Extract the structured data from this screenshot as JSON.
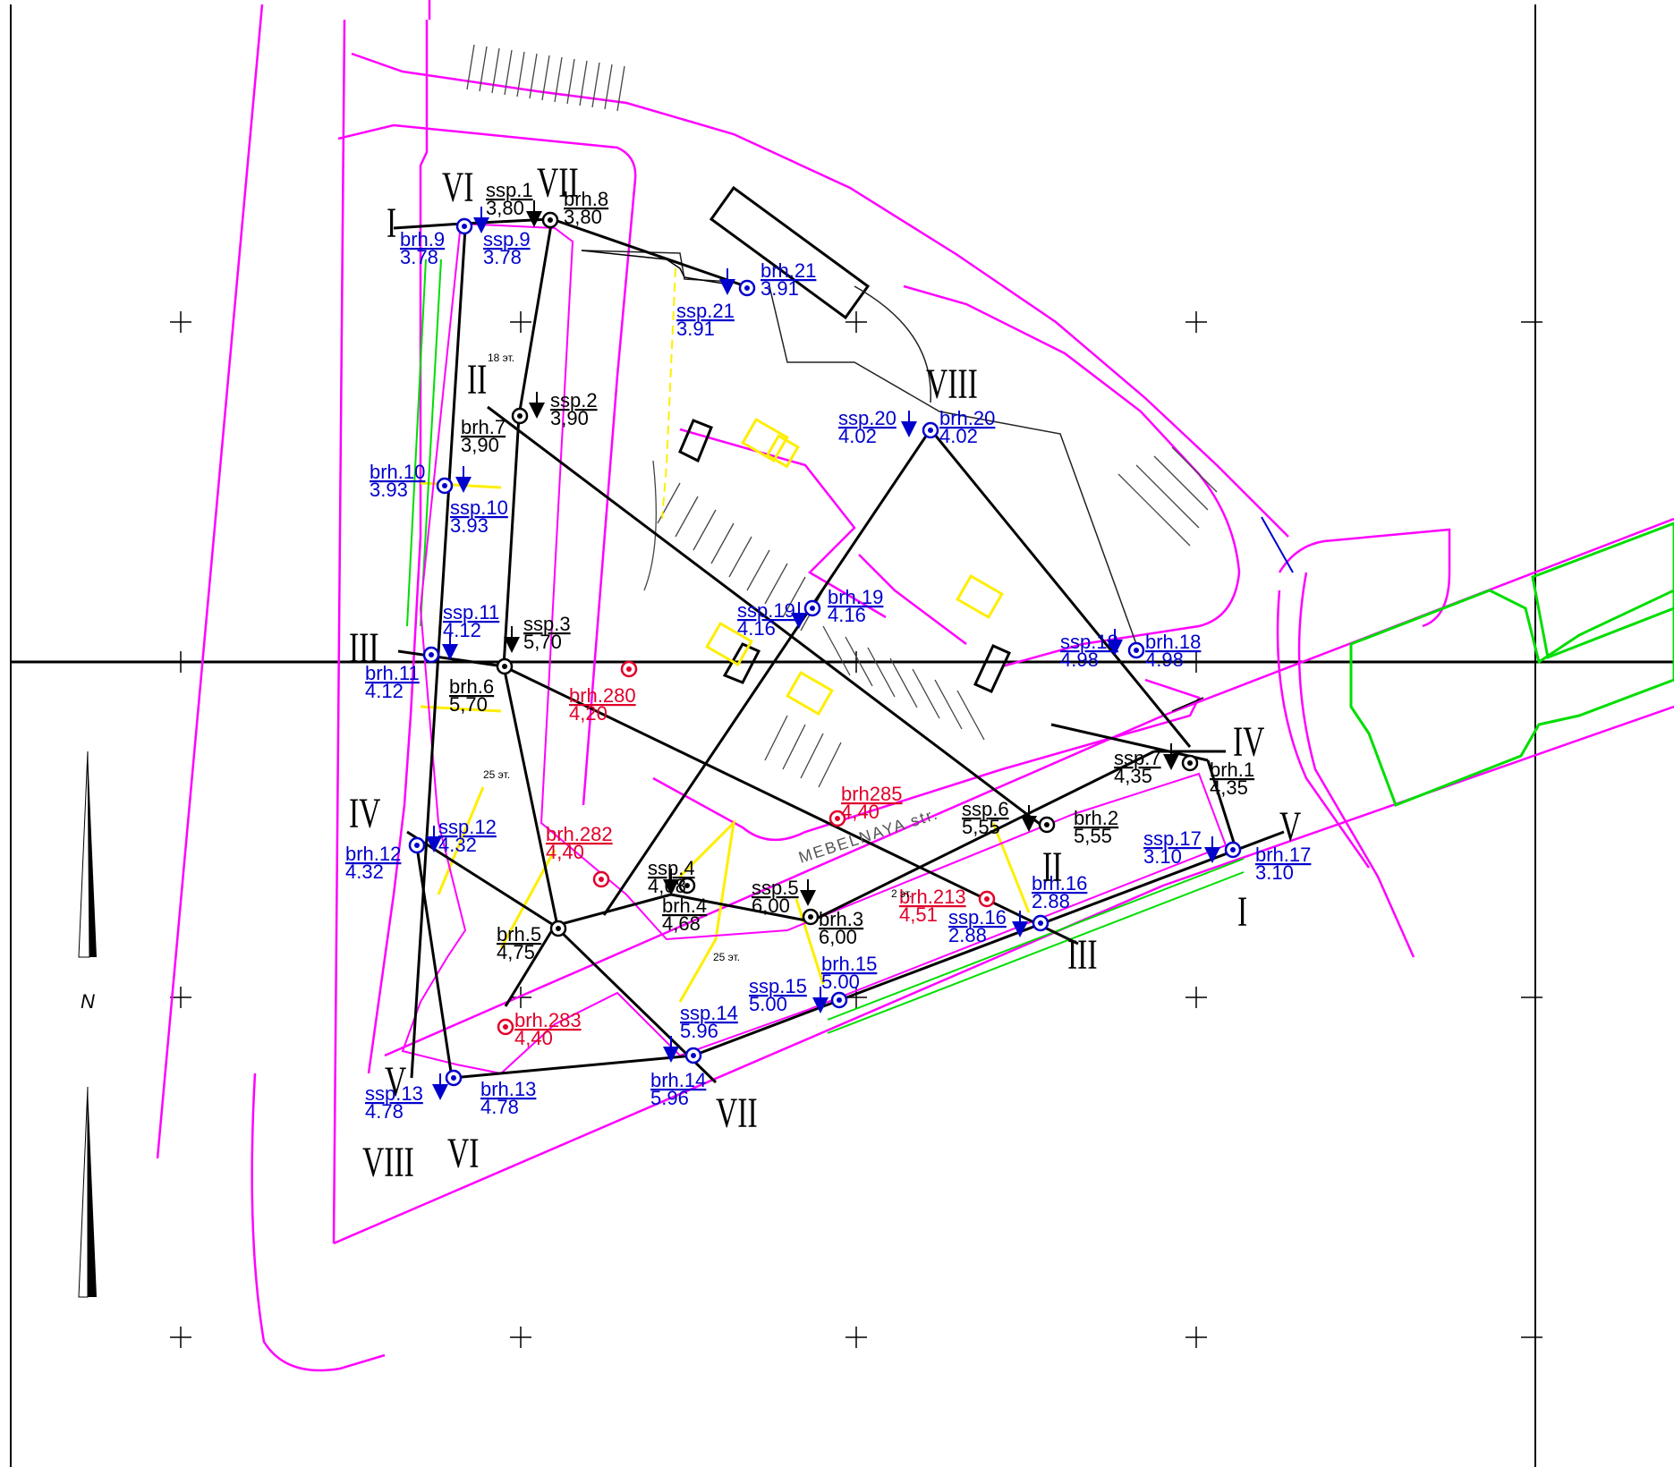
{
  "colors": {
    "boundary": "#ff00ff",
    "section": "#000000",
    "existing": "#0000cc",
    "new": "#e0002a",
    "building_green": "#00dd00",
    "parking_yellow": "#ffee00"
  },
  "street_label": "MEBELNAYA str.",
  "floor_notes": [
    {
      "id": "n18",
      "text": "18 эт."
    },
    {
      "id": "n25a",
      "text": "25 эт."
    },
    {
      "id": "n25b",
      "text": "25 эт."
    },
    {
      "id": "n2",
      "text": "2 эт."
    }
  ],
  "north_label": "N",
  "roman_numerals": [
    {
      "id": "r1",
      "text": "I"
    },
    {
      "id": "r2",
      "text": "VI"
    },
    {
      "id": "r3",
      "text": "VII"
    },
    {
      "id": "r4",
      "text": "II"
    },
    {
      "id": "r5",
      "text": "VIII"
    },
    {
      "id": "r6",
      "text": "III"
    },
    {
      "id": "r7",
      "text": "IV"
    },
    {
      "id": "r8",
      "text": "V"
    },
    {
      "id": "r9",
      "text": "VIII"
    },
    {
      "id": "r10",
      "text": "VI"
    },
    {
      "id": "r11",
      "text": "VII"
    },
    {
      "id": "r12",
      "text": "IV"
    },
    {
      "id": "r13",
      "text": "V"
    },
    {
      "id": "r14",
      "text": "I"
    },
    {
      "id": "r15",
      "text": "II"
    },
    {
      "id": "r16",
      "text": "III"
    }
  ],
  "points": [
    {
      "id": "brh9",
      "name": "brh.9",
      "value": "3.78",
      "kind": "existing"
    },
    {
      "id": "ssp9",
      "name": "ssp.9",
      "value": "3.78",
      "kind": "existing"
    },
    {
      "id": "ssp1",
      "name": "ssp.1",
      "value": "3,80",
      "kind": "section"
    },
    {
      "id": "brh8",
      "name": "brh.8",
      "value": "3,80",
      "kind": "section"
    },
    {
      "id": "brh21",
      "name": "brh.21",
      "value": "3.91",
      "kind": "existing"
    },
    {
      "id": "ssp21",
      "name": "ssp.21",
      "value": "3.91",
      "kind": "existing"
    },
    {
      "id": "ssp2",
      "name": "ssp.2",
      "value": "3,90",
      "kind": "section"
    },
    {
      "id": "brh7",
      "name": "brh.7",
      "value": "3,90",
      "kind": "section"
    },
    {
      "id": "brh10",
      "name": "brh.10",
      "value": "3.93",
      "kind": "existing"
    },
    {
      "id": "ssp10",
      "name": "ssp.10",
      "value": "3.93",
      "kind": "existing"
    },
    {
      "id": "ssp20",
      "name": "ssp.20",
      "value": "4.02",
      "kind": "existing"
    },
    {
      "id": "brh20",
      "name": "brh.20",
      "value": "4.02",
      "kind": "existing"
    },
    {
      "id": "ssp19",
      "name": "ssp.19",
      "value": "4.16",
      "kind": "existing"
    },
    {
      "id": "brh19",
      "name": "brh.19",
      "value": "4.16",
      "kind": "existing"
    },
    {
      "id": "ssp11",
      "name": "ssp.11",
      "value": "4.12",
      "kind": "existing"
    },
    {
      "id": "brh11",
      "name": "brh.11",
      "value": "4.12",
      "kind": "existing"
    },
    {
      "id": "ssp3",
      "name": "ssp.3",
      "value": "5,70",
      "kind": "section"
    },
    {
      "id": "brh6",
      "name": "brh.6",
      "value": "5,70",
      "kind": "section"
    },
    {
      "id": "brh280",
      "name": "brh.280",
      "value": "4,20",
      "kind": "new"
    },
    {
      "id": "ssp18",
      "name": "ssp.18",
      "value": "4.98",
      "kind": "existing"
    },
    {
      "id": "brh18",
      "name": "brh.18",
      "value": "4.98",
      "kind": "existing"
    },
    {
      "id": "ssp7",
      "name": "ssp.7",
      "value": "4,35",
      "kind": "section"
    },
    {
      "id": "brh1",
      "name": "brh.1",
      "value": "4,35",
      "kind": "section"
    },
    {
      "id": "brh285",
      "name": "brh285",
      "value": "4,40",
      "kind": "new"
    },
    {
      "id": "ssp6",
      "name": "ssp.6",
      "value": "5,55",
      "kind": "section"
    },
    {
      "id": "brh2",
      "name": "brh.2",
      "value": "5,55",
      "kind": "section"
    },
    {
      "id": "ssp17",
      "name": "ssp.17",
      "value": "3.10",
      "kind": "existing"
    },
    {
      "id": "brh17",
      "name": "brh.17",
      "value": "3.10",
      "kind": "existing"
    },
    {
      "id": "ssp12",
      "name": "ssp.12",
      "value": "4.32",
      "kind": "existing"
    },
    {
      "id": "brh12",
      "name": "brh.12",
      "value": "4.32",
      "kind": "existing"
    },
    {
      "id": "brh282",
      "name": "brh.282",
      "value": "4,40",
      "kind": "new"
    },
    {
      "id": "ssp4",
      "name": "ssp.4",
      "value": "4,68",
      "kind": "section"
    },
    {
      "id": "brh4",
      "name": "brh.4",
      "value": "4,68",
      "kind": "section"
    },
    {
      "id": "ssp5",
      "name": "ssp.5",
      "value": "6,00",
      "kind": "section"
    },
    {
      "id": "brh3",
      "name": "brh.3",
      "value": "6,00",
      "kind": "section"
    },
    {
      "id": "brh213",
      "name": "brh.213",
      "value": "4,51",
      "kind": "new"
    },
    {
      "id": "brh16",
      "name": "brh.16",
      "value": "2.88",
      "kind": "existing"
    },
    {
      "id": "ssp16",
      "name": "ssp.16",
      "value": "2.88",
      "kind": "existing"
    },
    {
      "id": "brh5",
      "name": "brh.5",
      "value": "4,75",
      "kind": "section"
    },
    {
      "id": "ssp15",
      "name": "ssp.15",
      "value": "5.00",
      "kind": "existing"
    },
    {
      "id": "brh15",
      "name": "brh.15",
      "value": "5.00",
      "kind": "existing"
    },
    {
      "id": "ssp14",
      "name": "ssp.14",
      "value": "5.96",
      "kind": "existing"
    },
    {
      "id": "brh14",
      "name": "brh.14",
      "value": "5.96",
      "kind": "existing"
    },
    {
      "id": "brh283",
      "name": "brh.283",
      "value": "4,40",
      "kind": "new"
    },
    {
      "id": "ssp13",
      "name": "ssp.13",
      "value": "4.78",
      "kind": "existing"
    },
    {
      "id": "brh13",
      "name": "brh.13",
      "value": "4.78",
      "kind": "existing"
    }
  ]
}
